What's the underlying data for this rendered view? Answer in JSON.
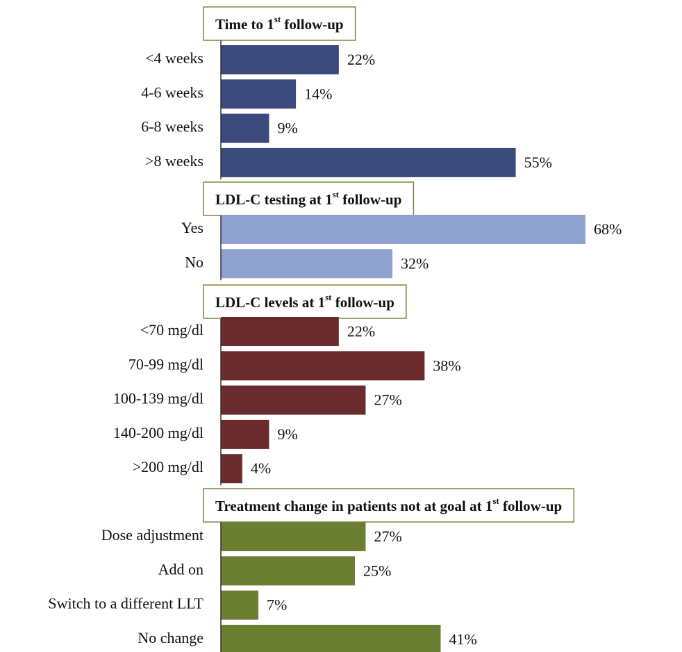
{
  "chart_data": [
    {
      "type": "bar",
      "title": "Time to 1st follow-up",
      "color": "#3a4a7b",
      "categories": [
        "<4 weeks",
        "4-6 weeks",
        "6-8 weeks",
        ">8 weeks"
      ],
      "values": [
        22,
        14,
        9,
        55
      ],
      "value_labels": [
        "22%",
        "14%",
        "9%",
        "55%"
      ]
    },
    {
      "type": "bar",
      "title": "LDL-C testing at 1st follow-up",
      "color": "#8fa2cf",
      "categories": [
        "Yes",
        "No"
      ],
      "values": [
        68,
        32
      ],
      "value_labels": [
        "68%",
        "32%"
      ]
    },
    {
      "type": "bar",
      "title": "LDL-C levels at 1st follow-up",
      "color": "#6b2b2c",
      "categories": [
        "<70 mg/dl",
        "70-99 mg/dl",
        "100-139 mg/dl",
        "140-200 mg/dl",
        ">200 mg/dl"
      ],
      "values": [
        22,
        38,
        27,
        9,
        4
      ],
      "value_labels": [
        "22%",
        "38%",
        "27%",
        "9%",
        "4%"
      ]
    },
    {
      "type": "bar",
      "title": "Treatment change in patients not at goal at 1st follow-up",
      "color": "#6b7f33",
      "categories": [
        "Dose adjustment",
        "Add on",
        "Switch to a different LLT",
        "No change"
      ],
      "values": [
        27,
        25,
        7,
        41
      ],
      "value_labels": [
        "27%",
        "25%",
        "7%",
        "41%"
      ]
    }
  ]
}
